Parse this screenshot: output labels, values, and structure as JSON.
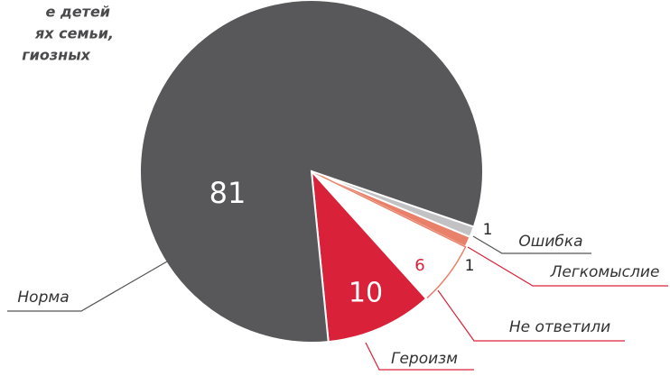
{
  "chart_data": {
    "type": "pie",
    "title_lines": [
      "е детей",
      "ях семьи,",
      "гиозных"
    ],
    "categories": [
      "Ошибка",
      "Легкомыслие",
      "Не ответили",
      "Героизм",
      "Норма"
    ],
    "values": [
      1,
      1,
      6,
      10,
      81
    ],
    "colors": [
      "#c2c2c4",
      "#e8806a",
      "#ffffff",
      "#d9213a",
      "#58585a"
    ]
  }
}
